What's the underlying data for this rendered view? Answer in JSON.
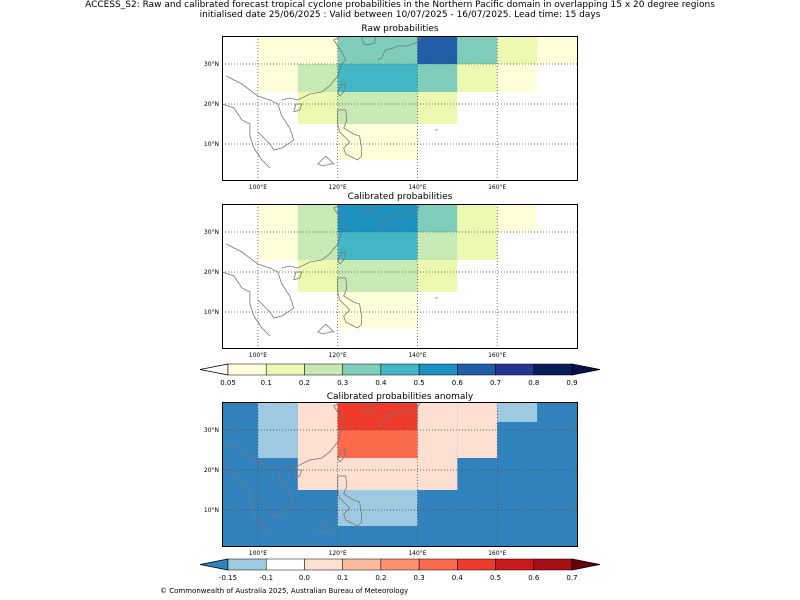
{
  "header": {
    "line1": "ACCESS_S2: Raw and calibrated forecast tropical cyclone probabilities in the Northern Pacific domain in overlapping 15 x 20 degree regions",
    "line2": "initialised date 25/06/2025 :  Valid between 10/07/2025 - 16/07/2025. Lead time: 15 days"
  },
  "map_axes": {
    "lon_range": [
      91,
      180
    ],
    "lat_range": [
      1,
      37
    ],
    "lon_ticks": [
      "100°E",
      "120°E",
      "140°E",
      "160°E"
    ],
    "lat_ticks": [
      "30°N",
      "20°N",
      "10°N"
    ],
    "gridlines": true
  },
  "panels": {
    "raw": {
      "title": "Raw probabilities"
    },
    "calibrated": {
      "title": "Calibrated probabilities"
    },
    "anomaly": {
      "title": "Calibrated probabilities anomaly"
    }
  },
  "prob_colorbar": {
    "ticks": [
      "0.05",
      "0.1",
      "0.2",
      "0.3",
      "0.4",
      "0.5",
      "0.6",
      "0.7",
      "0.8",
      "0.9"
    ],
    "colors": [
      "#ffffff",
      "#ffffd9",
      "#edf8b1",
      "#c7e9b4",
      "#7fcdbb",
      "#41b6c4",
      "#1d91c0",
      "#225ea8",
      "#253494",
      "#081d58",
      "#08104a"
    ]
  },
  "anom_colorbar": {
    "ticks": [
      "-0.15",
      "-0.1",
      "0.0",
      "0.1",
      "0.2",
      "0.3",
      "0.4",
      "0.5",
      "0.6",
      "0.7"
    ],
    "colors": [
      "#3182bd",
      "#9ecae1",
      "#ffffff",
      "#fee0d2",
      "#fcbba1",
      "#fc9272",
      "#fb6a4a",
      "#ef3b2c",
      "#cb181d",
      "#a50f15",
      "#67000d"
    ]
  },
  "chart_data": [
    {
      "type": "heatmap",
      "title": "Raw probabilities",
      "cells": [
        {
          "lon": [
            110,
            120
          ],
          "lat": [
            30,
            37
          ],
          "value": 0.08
        },
        {
          "lon": [
            120,
            140
          ],
          "lat": [
            30,
            37
          ],
          "value": 0.38
        },
        {
          "lon": [
            140,
            150
          ],
          "lat": [
            30,
            37
          ],
          "value": 0.6
        },
        {
          "lon": [
            150,
            160
          ],
          "lat": [
            30,
            37
          ],
          "value": 0.32
        },
        {
          "lon": [
            160,
            170
          ],
          "lat": [
            30,
            37
          ],
          "value": 0.15
        },
        {
          "lon": [
            170,
            180
          ],
          "lat": [
            30,
            37
          ],
          "value": 0.07
        },
        {
          "lon": [
            100,
            110
          ],
          "lat": [
            23,
            37
          ],
          "value": 0.07
        },
        {
          "lon": [
            110,
            120
          ],
          "lat": [
            23,
            30
          ],
          "value": 0.25
        },
        {
          "lon": [
            120,
            140
          ],
          "lat": [
            23,
            30
          ],
          "value": 0.45
        },
        {
          "lon": [
            140,
            150
          ],
          "lat": [
            23,
            30
          ],
          "value": 0.36
        },
        {
          "lon": [
            150,
            160
          ],
          "lat": [
            23,
            30
          ],
          "value": 0.15
        },
        {
          "lon": [
            160,
            170
          ],
          "lat": [
            23,
            30
          ],
          "value": 0.08
        },
        {
          "lon": [
            110,
            120
          ],
          "lat": [
            15,
            23
          ],
          "value": 0.15
        },
        {
          "lon": [
            120,
            140
          ],
          "lat": [
            15,
            23
          ],
          "value": 0.25
        },
        {
          "lon": [
            140,
            150
          ],
          "lat": [
            15,
            23
          ],
          "value": 0.15
        },
        {
          "lon": [
            120,
            140
          ],
          "lat": [
            6,
            15
          ],
          "value": 0.08
        }
      ]
    },
    {
      "type": "heatmap",
      "title": "Calibrated probabilities",
      "cells": [
        {
          "lon": [
            100,
            110
          ],
          "lat": [
            23,
            37
          ],
          "value": 0.07
        },
        {
          "lon": [
            110,
            120
          ],
          "lat": [
            23,
            37
          ],
          "value": 0.25
        },
        {
          "lon": [
            120,
            140
          ],
          "lat": [
            30,
            37
          ],
          "value": 0.55
        },
        {
          "lon": [
            140,
            150
          ],
          "lat": [
            30,
            37
          ],
          "value": 0.38
        },
        {
          "lon": [
            150,
            160
          ],
          "lat": [
            30,
            37
          ],
          "value": 0.15
        },
        {
          "lon": [
            160,
            170
          ],
          "lat": [
            30,
            37
          ],
          "value": 0.08
        },
        {
          "lon": [
            120,
            140
          ],
          "lat": [
            23,
            30
          ],
          "value": 0.45
        },
        {
          "lon": [
            140,
            150
          ],
          "lat": [
            23,
            30
          ],
          "value": 0.25
        },
        {
          "lon": [
            150,
            160
          ],
          "lat": [
            23,
            30
          ],
          "value": 0.15
        },
        {
          "lon": [
            110,
            120
          ],
          "lat": [
            15,
            23
          ],
          "value": 0.15
        },
        {
          "lon": [
            120,
            140
          ],
          "lat": [
            15,
            23
          ],
          "value": 0.25
        },
        {
          "lon": [
            140,
            150
          ],
          "lat": [
            15,
            23
          ],
          "value": 0.15
        },
        {
          "lon": [
            120,
            140
          ],
          "lat": [
            6,
            15
          ],
          "value": 0.08
        }
      ]
    },
    {
      "type": "heatmap",
      "title": "Calibrated probabilities anomaly",
      "background_value": -0.2,
      "cells": [
        {
          "lon": [
            100,
            110
          ],
          "lat": [
            23,
            37
          ],
          "value": -0.12
        },
        {
          "lon": [
            110,
            120
          ],
          "lat": [
            23,
            37
          ],
          "value": 0.05
        },
        {
          "lon": [
            120,
            140
          ],
          "lat": [
            30,
            37
          ],
          "value": 0.45
        },
        {
          "lon": [
            140,
            150
          ],
          "lat": [
            30,
            37
          ],
          "value": 0.05
        },
        {
          "lon": [
            150,
            160
          ],
          "lat": [
            23,
            37
          ],
          "value": 0.0
        },
        {
          "lon": [
            160,
            170
          ],
          "lat": [
            32,
            37
          ],
          "value": -0.12
        },
        {
          "lon": [
            120,
            140
          ],
          "lat": [
            23,
            30
          ],
          "value": 0.35
        },
        {
          "lon": [
            140,
            150
          ],
          "lat": [
            23,
            30
          ],
          "value": 0.05
        },
        {
          "lon": [
            110,
            120
          ],
          "lat": [
            15,
            23
          ],
          "value": 0.0
        },
        {
          "lon": [
            120,
            140
          ],
          "lat": [
            15,
            23
          ],
          "value": 0.05
        },
        {
          "lon": [
            140,
            150
          ],
          "lat": [
            15,
            23
          ],
          "value": 0.0
        },
        {
          "lon": [
            120,
            140
          ],
          "lat": [
            6,
            15
          ],
          "value": -0.12
        }
      ]
    }
  ],
  "footer": {
    "text": "© Commonwealth of Australia 2025, Australian Bureau of Meteorology"
  }
}
